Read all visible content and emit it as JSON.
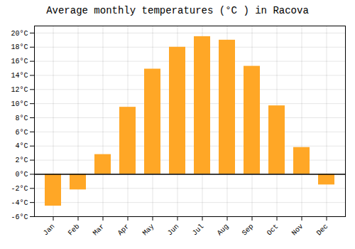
{
  "chart_data": {
    "type": "bar",
    "title": "Average monthly temperatures (°C ) in Racova",
    "categories": [
      "Jan",
      "Feb",
      "Mar",
      "Apr",
      "May",
      "Jun",
      "Jul",
      "Aug",
      "Sep",
      "Oct",
      "Nov",
      "Dec"
    ],
    "values": [
      -4.5,
      -2.2,
      2.8,
      9.5,
      14.9,
      18.0,
      19.5,
      19.0,
      15.3,
      9.7,
      3.8,
      -1.5
    ],
    "color": "#FFA726",
    "ylim": [
      -6,
      21
    ],
    "yticks": [
      {
        "value": -6,
        "label": "-6°C"
      },
      {
        "value": -4,
        "label": "-4°C"
      },
      {
        "value": -2,
        "label": "-2°C"
      },
      {
        "value": 0,
        "label": "0°C"
      },
      {
        "value": 2,
        "label": "2°C"
      },
      {
        "value": 4,
        "label": "4°C"
      },
      {
        "value": 6,
        "label": "6°C"
      },
      {
        "value": 8,
        "label": "8°C"
      },
      {
        "value": 10,
        "label": "10°C"
      },
      {
        "value": 12,
        "label": "12°C"
      },
      {
        "value": 14,
        "label": "14°C"
      },
      {
        "value": 16,
        "label": "16°C"
      },
      {
        "value": 18,
        "label": "18°C"
      },
      {
        "value": 20,
        "label": "20°C"
      }
    ],
    "grid": true
  }
}
